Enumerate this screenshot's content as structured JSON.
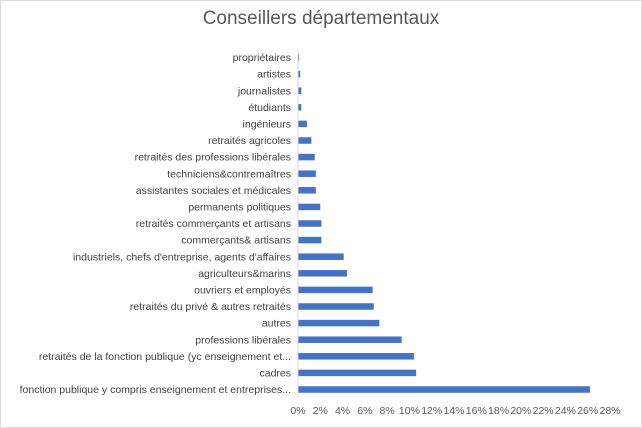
{
  "chart_data": {
    "type": "bar",
    "orientation": "horizontal",
    "title": "Conseillers départementaux",
    "xlabel": "",
    "ylabel": "",
    "xlim": [
      0,
      0.28
    ],
    "tick_step": 0.02,
    "tick_labels": [
      "0%",
      "2%",
      "4%",
      "6%",
      "8%",
      "10%",
      "12%",
      "14%",
      "16%",
      "18%",
      "20%",
      "22%",
      "24%",
      "26%",
      "28%"
    ],
    "bar_color": "#4472c4",
    "grid": false,
    "legend": "none",
    "categories": [
      "propriétaires",
      "artistes",
      "journalistes",
      "étudiants",
      "ingénieurs",
      "retraités agricoles",
      "retraités des professions libérales",
      "techniciens&contremaîtres",
      "assistantes sociales et médicales",
      "permanents politiques",
      "retraités commerçants et artisans",
      "commerçants& artisans",
      "industriels, chefs d'entreprise, agents d'affaires",
      "agriculteurs&marins",
      "ouvriers et employés",
      "retraités du privé & autres retraités",
      "autres",
      "professions libérales",
      "retraités de la fonction publique (yc enseignement et...",
      "cadres",
      "fonction publique y compris enseignement et entreprises..."
    ],
    "values": [
      0.001,
      0.002,
      0.003,
      0.003,
      0.008,
      0.012,
      0.015,
      0.016,
      0.016,
      0.02,
      0.021,
      0.021,
      0.041,
      0.044,
      0.067,
      0.068,
      0.073,
      0.093,
      0.104,
      0.106,
      0.262
    ]
  }
}
